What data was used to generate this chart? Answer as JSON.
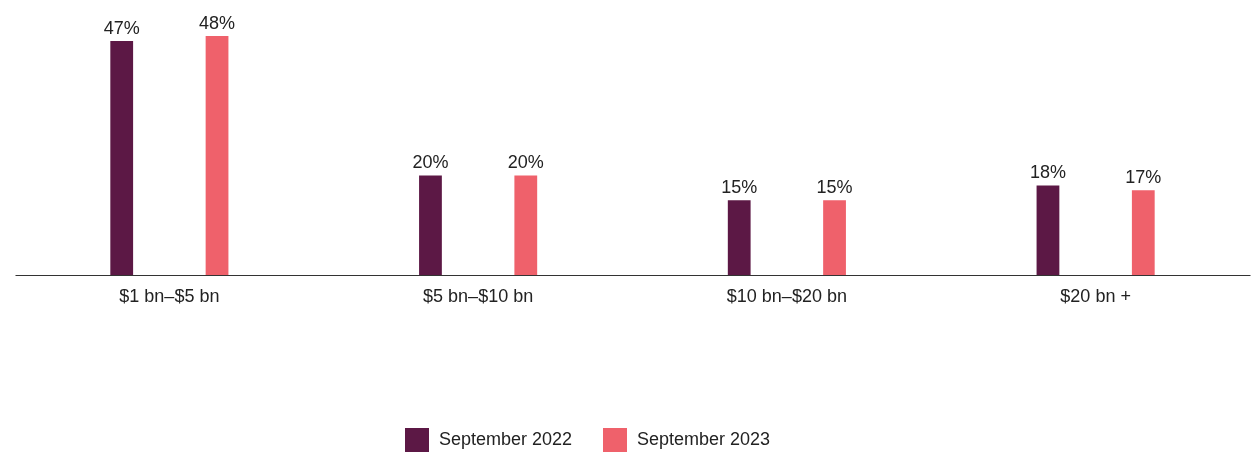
{
  "chart_data": {
    "type": "bar",
    "categories": [
      "$1 bn–$5 bn",
      "$5 bn–$10 bn",
      "$10 bn–$20 bn",
      "$20 bn +"
    ],
    "series": [
      {
        "name": "September 2022",
        "color": "#5c1845",
        "values": [
          47,
          20,
          15,
          18
        ],
        "value_labels": [
          "47%",
          "20%",
          "15%",
          "18%"
        ]
      },
      {
        "name": "September 2023",
        "color": "#ef616b",
        "values": [
          48,
          20,
          15,
          17
        ],
        "value_labels": [
          "48%",
          "20%",
          "15%",
          "17%"
        ]
      }
    ],
    "legend": "bottom"
  }
}
